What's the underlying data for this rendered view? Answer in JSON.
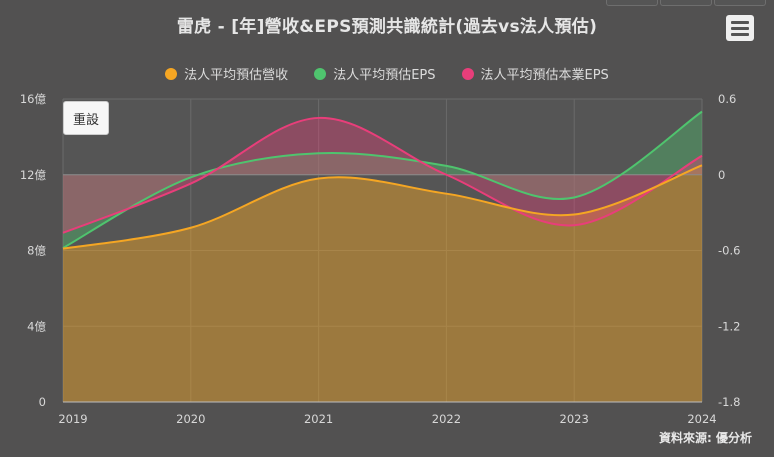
{
  "title": "雷虎 - [年]營收&EPS預測共識統計(過去vs法人預估)",
  "reset_label": "重設",
  "menu_icon": "hamburger-menu-icon",
  "source": "資料來源: 優分析",
  "legend": [
    {
      "label": "法人平均預估營收",
      "color": "#f5a623"
    },
    {
      "label": "法人平均預估EPS",
      "color": "#4fc46e"
    },
    {
      "label": "法人平均預估本業EPS",
      "color": "#e83e7a"
    }
  ],
  "chart_data": {
    "type": "area",
    "x": [
      "2019",
      "2020",
      "2021",
      "2022",
      "2023",
      "2024"
    ],
    "y_left": {
      "ylim": [
        0,
        16
      ],
      "ticks": [
        "0",
        "4億",
        "8億",
        "12億",
        "16億"
      ]
    },
    "y_right": {
      "ylim": [
        -1.8,
        0.6
      ],
      "ticks": [
        "-1.8",
        "-1.2",
        "-0.6",
        "0",
        "0.6"
      ]
    },
    "grid": true,
    "legend_position": "top",
    "series": [
      {
        "name": "法人平均預估營收",
        "axis": "left",
        "color": "#f5a623",
        "values": [
          8.1,
          9.2,
          11.8,
          11.0,
          9.9,
          12.5
        ]
      },
      {
        "name": "法人平均預估EPS",
        "axis": "right",
        "color": "#4fc46e",
        "values": [
          -0.58,
          -0.02,
          0.17,
          0.07,
          -0.18,
          0.5
        ]
      },
      {
        "name": "法人平均預估本業EPS",
        "axis": "right",
        "color": "#e83e7a",
        "values": [
          -0.46,
          -0.07,
          0.45,
          0.0,
          -0.4,
          0.15
        ]
      }
    ]
  }
}
